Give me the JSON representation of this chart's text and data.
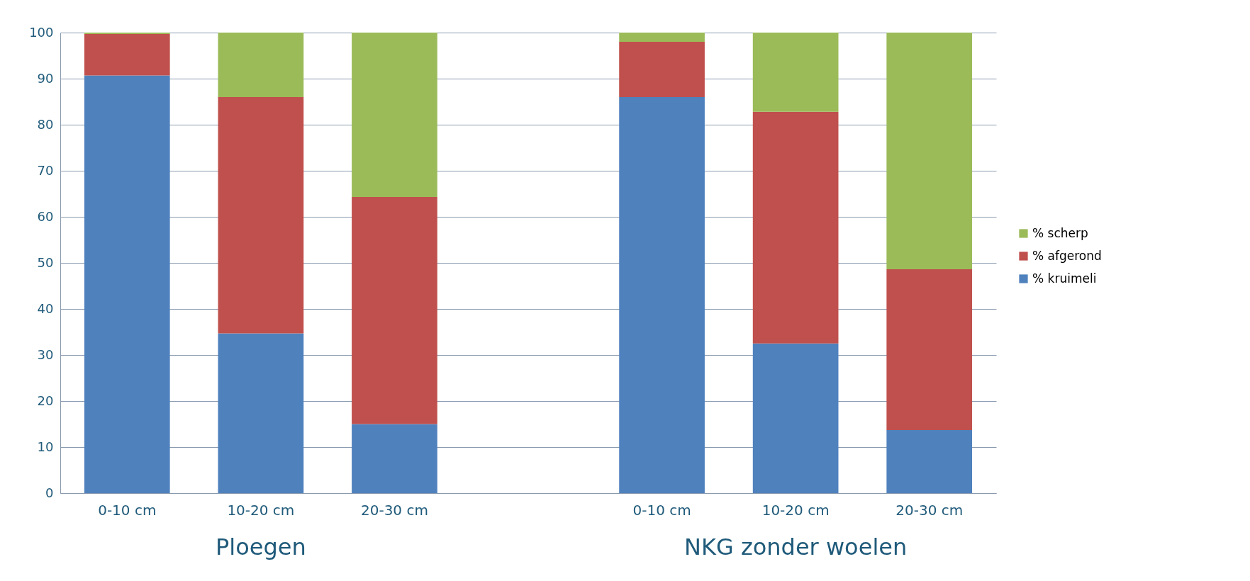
{
  "chart_data": {
    "type": "bar",
    "stacked": true,
    "categories": [
      "0-10 cm",
      "10-20 cm",
      "20-30 cm",
      null,
      "0-10 cm",
      "10-20 cm",
      "20-30 cm"
    ],
    "series": [
      {
        "name": "% kruimeli",
        "color": "#4f81bd",
        "values": [
          90.7,
          34.7,
          15,
          null,
          86,
          32.5,
          13.7
        ]
      },
      {
        "name": "% afgerond",
        "color": "#c0504d",
        "values": [
          9,
          51.3,
          49.3,
          null,
          12,
          50.3,
          34.9
        ]
      },
      {
        "name": "% scherp",
        "color": "#9bbb59",
        "values": [
          0.3,
          14,
          35.7,
          null,
          2,
          17.2,
          51.4
        ]
      }
    ],
    "annotations": [
      "Ploegen",
      "NKG zonder woelen"
    ],
    "ylim": [
      0,
      100
    ],
    "yticks": [
      0,
      10,
      20,
      30,
      40,
      50,
      60,
      70,
      80,
      90,
      100
    ],
    "grid": "y",
    "legend": "right"
  }
}
